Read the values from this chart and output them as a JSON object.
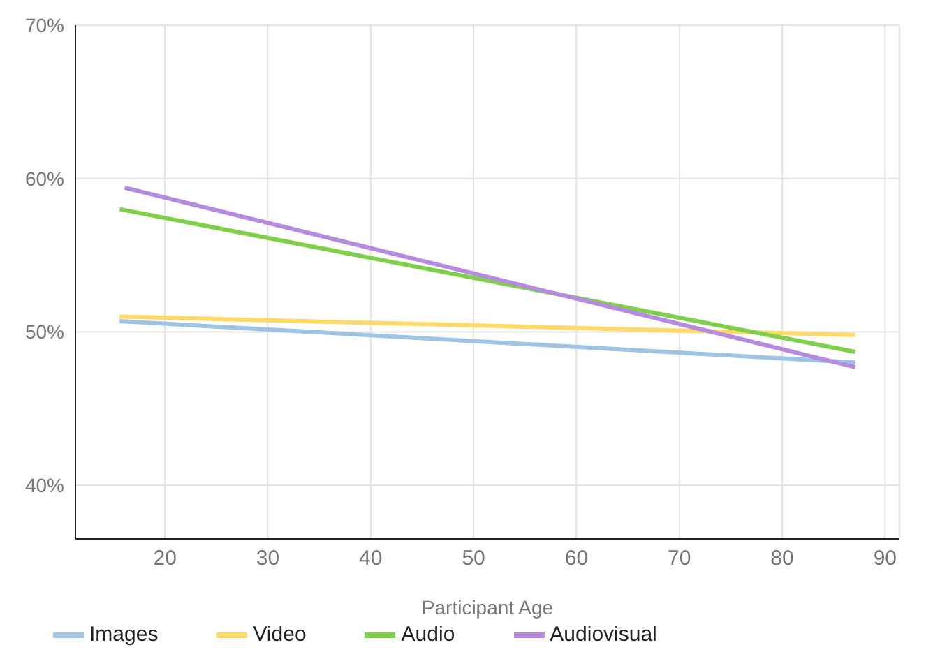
{
  "chart_data": {
    "type": "line",
    "xlabel": "Participant Age",
    "series": [
      {
        "name": "Images",
        "color": "#9dc3e6",
        "x": [
          15.6,
          87.1
        ],
        "values": [
          50.7,
          48.0
        ]
      },
      {
        "name": "Video",
        "color": "#ffd966",
        "x": [
          15.6,
          87.1
        ],
        "values": [
          51.0,
          49.8
        ]
      },
      {
        "name": "Audio",
        "color": "#7ed04b",
        "x": [
          15.6,
          87.1
        ],
        "values": [
          58.0,
          48.7
        ]
      },
      {
        "name": "Audiovisual",
        "color": "#b58ae0",
        "x": [
          16.1,
          87.1
        ],
        "values": [
          59.4,
          47.7
        ]
      }
    ],
    "xlim": [
      11.3,
      91.4
    ],
    "xticks": [
      20,
      30,
      40,
      50,
      60,
      70,
      80,
      90
    ],
    "ylim": [
      36.5,
      70
    ],
    "yticks": [
      {
        "value": 40,
        "label": "40%"
      },
      {
        "value": 50,
        "label": "50%"
      },
      {
        "value": 60,
        "label": "60%"
      },
      {
        "value": 70,
        "label": "70%"
      }
    ],
    "grid": true,
    "legend": "bottom left",
    "marker": "none",
    "line_style": "solid"
  }
}
